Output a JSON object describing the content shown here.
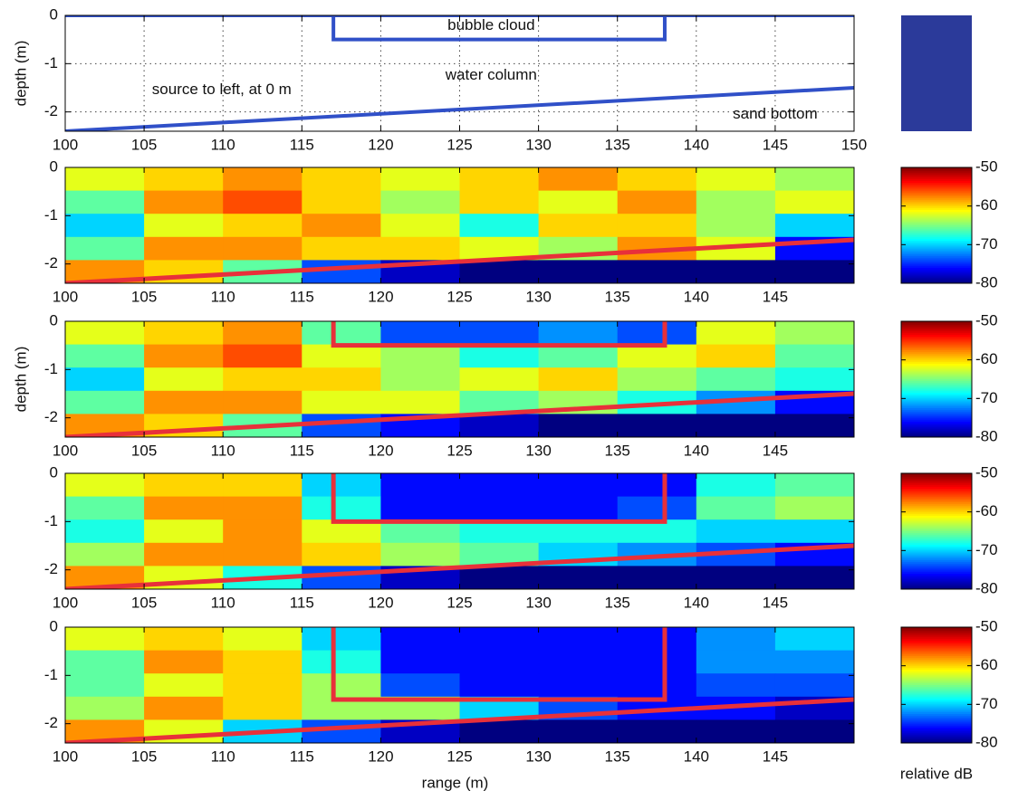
{
  "chart_data": [
    {
      "type": "diagram",
      "ylabel": "depth (m)",
      "xlim": [
        100,
        150
      ],
      "ylim": [
        -2.4,
        0
      ],
      "xticks": [
        100,
        105,
        110,
        115,
        120,
        125,
        130,
        135,
        140,
        145,
        150
      ],
      "yticks": [
        0,
        -1,
        -2
      ],
      "grid": true,
      "lines": [
        {
          "x": [
            100,
            150
          ],
          "y": [
            0,
            0
          ],
          "color": "#3050c8"
        },
        {
          "x": [
            117,
            117,
            138,
            138
          ],
          "y": [
            0,
            -0.5,
            -0.5,
            0
          ],
          "color": "#3050c8"
        },
        {
          "x": [
            100,
            150
          ],
          "y": [
            -2.4,
            -1.5
          ],
          "color": "#3050c8"
        }
      ],
      "annotations": [
        "bubble cloud",
        "water column",
        "source to left, at 0 m",
        "sand bottom"
      ]
    },
    {
      "type": "heatmap",
      "xlim": [
        100,
        150
      ],
      "ylim": [
        -2.4,
        0
      ],
      "xticks": [
        100,
        105,
        110,
        115,
        120,
        125,
        130,
        135,
        140,
        145
      ],
      "yticks": [
        0,
        -1,
        -2
      ],
      "colormap": "jet",
      "clim": [
        -80,
        -50
      ],
      "cticks": [
        -50,
        -60,
        -70,
        -80
      ],
      "x": [
        102.5,
        107.5,
        112.5,
        117.5,
        122.5,
        127.5,
        132.5,
        137.5,
        142.5,
        147.5
      ],
      "y": [
        -0.24,
        -0.72,
        -1.2,
        -1.68,
        -2.16
      ],
      "z": [
        [
          -62,
          -60,
          -58,
          -60,
          -62,
          -60,
          -58,
          -60,
          -62,
          -64
        ],
        [
          -66,
          -58,
          -56,
          -60,
          -64,
          -60,
          -62,
          -58,
          -64,
          -62
        ],
        [
          -70,
          -62,
          -60,
          -58,
          -62,
          -68,
          -60,
          -60,
          -64,
          -70
        ],
        [
          -66,
          -58,
          -58,
          -60,
          -60,
          -62,
          -64,
          -58,
          -62,
          -76
        ],
        [
          -58,
          -60,
          -66,
          -74,
          -78,
          -80,
          -80,
          -80,
          -80,
          -80
        ]
      ],
      "lines": [
        {
          "x": [
            100,
            150
          ],
          "y": [
            -2.4,
            -1.5
          ],
          "color": "#e8303a"
        }
      ]
    },
    {
      "type": "heatmap",
      "ylabel": "depth (m)",
      "xlim": [
        100,
        150
      ],
      "ylim": [
        -2.4,
        0
      ],
      "xticks": [
        100,
        105,
        110,
        115,
        120,
        125,
        130,
        135,
        140,
        145
      ],
      "yticks": [
        0,
        -1,
        -2
      ],
      "colormap": "jet",
      "clim": [
        -80,
        -50
      ],
      "cticks": [
        -50,
        -60,
        -70,
        -80
      ],
      "x": [
        102.5,
        107.5,
        112.5,
        117.5,
        122.5,
        127.5,
        132.5,
        137.5,
        142.5,
        147.5
      ],
      "y": [
        -0.24,
        -0.72,
        -1.2,
        -1.68,
        -2.16
      ],
      "z": [
        [
          -62,
          -60,
          -58,
          -66,
          -74,
          -74,
          -72,
          -74,
          -62,
          -64
        ],
        [
          -66,
          -58,
          -56,
          -62,
          -64,
          -68,
          -66,
          -62,
          -60,
          -66
        ],
        [
          -70,
          -62,
          -60,
          -60,
          -64,
          -62,
          -60,
          -64,
          -66,
          -68
        ],
        [
          -66,
          -58,
          -58,
          -62,
          -62,
          -66,
          -64,
          -68,
          -72,
          -76
        ],
        [
          -58,
          -60,
          -66,
          -74,
          -76,
          -78,
          -80,
          -80,
          -80,
          -80
        ]
      ],
      "lines": [
        {
          "x": [
            100,
            150
          ],
          "y": [
            -2.4,
            -1.5
          ],
          "color": "#e8303a"
        },
        {
          "x": [
            117,
            117,
            138,
            138
          ],
          "y": [
            0,
            -0.5,
            -0.5,
            0
          ],
          "color": "#e8303a"
        }
      ]
    },
    {
      "type": "heatmap",
      "xlim": [
        100,
        150
      ],
      "ylim": [
        -2.4,
        0
      ],
      "xticks": [
        100,
        105,
        110,
        115,
        120,
        125,
        130,
        135,
        140,
        145
      ],
      "yticks": [
        0,
        -1,
        -2
      ],
      "colormap": "jet",
      "clim": [
        -80,
        -50
      ],
      "cticks": [
        -50,
        -60,
        -70,
        -80
      ],
      "x": [
        102.5,
        107.5,
        112.5,
        117.5,
        122.5,
        127.5,
        132.5,
        137.5,
        142.5,
        147.5
      ],
      "y": [
        -0.24,
        -0.72,
        -1.2,
        -1.68,
        -2.16
      ],
      "z": [
        [
          -62,
          -60,
          -60,
          -70,
          -76,
          -76,
          -76,
          -76,
          -68,
          -66
        ],
        [
          -66,
          -58,
          -58,
          -68,
          -76,
          -76,
          -76,
          -74,
          -66,
          -64
        ],
        [
          -68,
          -62,
          -58,
          -62,
          -66,
          -68,
          -68,
          -68,
          -70,
          -70
        ],
        [
          -64,
          -58,
          -58,
          -60,
          -64,
          -66,
          -70,
          -72,
          -74,
          -76
        ],
        [
          -58,
          -62,
          -68,
          -74,
          -78,
          -80,
          -80,
          -80,
          -80,
          -80
        ]
      ],
      "lines": [
        {
          "x": [
            100,
            150
          ],
          "y": [
            -2.4,
            -1.5
          ],
          "color": "#e8303a"
        },
        {
          "x": [
            117,
            117,
            138,
            138
          ],
          "y": [
            0,
            -1,
            -1,
            0
          ],
          "color": "#e8303a"
        }
      ]
    },
    {
      "type": "heatmap",
      "xlabel": "range (m)",
      "colorbar_label": "relative dB",
      "xlim": [
        100,
        150
      ],
      "ylim": [
        -2.4,
        0
      ],
      "xticks": [
        100,
        105,
        110,
        115,
        120,
        125,
        130,
        135,
        140,
        145
      ],
      "yticks": [
        0,
        -1,
        -2
      ],
      "colormap": "jet",
      "clim": [
        -80,
        -50
      ],
      "cticks": [
        -50,
        -60,
        -70,
        -80
      ],
      "x": [
        102.5,
        107.5,
        112.5,
        117.5,
        122.5,
        127.5,
        132.5,
        137.5,
        142.5,
        147.5
      ],
      "y": [
        -0.24,
        -0.72,
        -1.2,
        -1.68,
        -2.16
      ],
      "z": [
        [
          -62,
          -60,
          -62,
          -70,
          -76,
          -76,
          -76,
          -76,
          -72,
          -70
        ],
        [
          -66,
          -58,
          -60,
          -68,
          -76,
          -76,
          -76,
          -76,
          -72,
          -72
        ],
        [
          -66,
          -62,
          -60,
          -64,
          -74,
          -76,
          -76,
          -76,
          -74,
          -74
        ],
        [
          -64,
          -58,
          -60,
          -64,
          -64,
          -70,
          -74,
          -76,
          -76,
          -78
        ],
        [
          -58,
          -62,
          -70,
          -74,
          -78,
          -80,
          -80,
          -80,
          -80,
          -80
        ]
      ],
      "lines": [
        {
          "x": [
            100,
            150
          ],
          "y": [
            -2.4,
            -1.5
          ],
          "color": "#e8303a"
        },
        {
          "x": [
            117,
            117,
            138,
            138
          ],
          "y": [
            0,
            -1.5,
            -1.5,
            0
          ],
          "color": "#e8303a"
        }
      ]
    }
  ]
}
